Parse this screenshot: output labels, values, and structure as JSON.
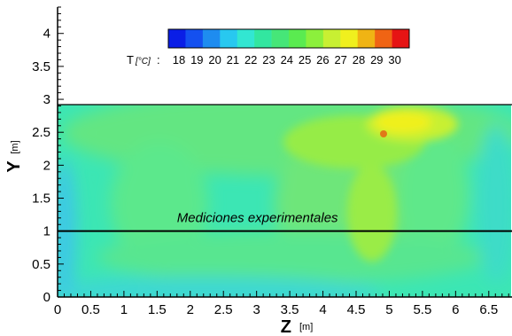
{
  "chart_data": {
    "type": "heatmap",
    "title": "",
    "xlabel": "Z",
    "xunit": "[m]",
    "ylabel": "Y",
    "yunit": "[m]",
    "xlim": [
      0,
      6.85
    ],
    "ylim": [
      0,
      4.4
    ],
    "xticks": [
      "0",
      "0.5",
      "1",
      "1.5",
      "2",
      "2.5",
      "3",
      "3.5",
      "4",
      "4.5",
      "5",
      "5.5",
      "6",
      "6.5"
    ],
    "yticks": [
      "0",
      "0.5",
      "1",
      "1.5",
      "2",
      "2.5",
      "3",
      "3.5",
      "4"
    ],
    "domain_top_y": 2.9,
    "reference_line": {
      "y": 1.0,
      "label": "Mediciones experimentales"
    },
    "colorbar": {
      "title": "T",
      "unit": "[°C]",
      "separator": ":",
      "levels": [
        18,
        19,
        20,
        21,
        22,
        23,
        24,
        25,
        26,
        27,
        28,
        29,
        30
      ],
      "colors": [
        "#0a1ee6",
        "#1450f0",
        "#1e8cf0",
        "#28c8f0",
        "#32e6d2",
        "#32e6a0",
        "#46e678",
        "#5aeb50",
        "#8cf03c",
        "#c8f032",
        "#f0f01e",
        "#f0b414",
        "#f06414",
        "#e61414"
      ]
    },
    "grid": false,
    "legend_position": "top"
  }
}
